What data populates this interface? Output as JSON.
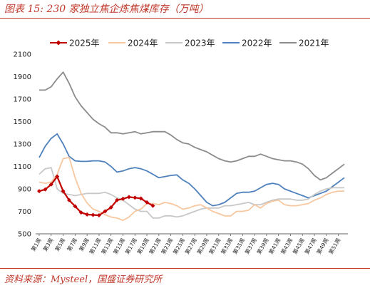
{
  "header": {
    "title": "图表 15:  230 家独立焦企炼焦煤库存（万吨）"
  },
  "footer": {
    "source": "资料来源：Mysteel，国盛证券研究所"
  },
  "chart_data": {
    "type": "line",
    "title": "",
    "xlabel": "",
    "ylabel": "",
    "ylim": [
      500,
      2100
    ],
    "yticks": [
      500,
      700,
      900,
      1100,
      1300,
      1500,
      1700,
      1900,
      2100
    ],
    "xticks": [
      "第1周",
      "第3周",
      "第5周",
      "第7周",
      "第9周",
      "第11周",
      "第13周",
      "第15周",
      "第17周",
      "第19周",
      "第21周",
      "第23周",
      "第25周",
      "第27周",
      "第29周",
      "第31周",
      "第33周",
      "第35周",
      "第37周",
      "第39周",
      "第41周",
      "第43周",
      "第45周",
      "第47周",
      "第49周",
      "第51周"
    ],
    "weeks": 52,
    "legend_position": "top",
    "series": [
      {
        "name": "2025年",
        "color": "#c00000",
        "marker": "diamond",
        "values": [
          880,
          895,
          940,
          1010,
          880,
          800,
          745,
          690,
          672,
          668,
          665,
          700,
          735,
          800,
          812,
          828,
          822,
          815,
          780,
          750
        ]
      },
      {
        "name": "2024年",
        "color": "#f7c7a0",
        "marker": "none",
        "values": [
          960,
          950,
          960,
          1030,
          1170,
          1180,
          1000,
          860,
          775,
          720,
          700,
          670,
          650,
          640,
          620,
          650,
          700,
          720,
          770,
          770,
          760,
          780,
          770,
          750,
          720,
          730,
          750,
          760,
          730,
          700,
          680,
          660,
          660,
          700,
          700,
          710,
          760,
          730,
          770,
          790,
          800,
          760,
          750,
          750,
          760,
          770,
          800,
          820,
          850,
          870,
          880,
          880
        ]
      },
      {
        "name": "2023年",
        "color": "#c8c8c8",
        "marker": "none",
        "values": [
          1030,
          1080,
          1090,
          900,
          860,
          850,
          840,
          850,
          860,
          860,
          860,
          870,
          850,
          820,
          800,
          760,
          720,
          700,
          700,
          640,
          640,
          660,
          660,
          650,
          660,
          680,
          700,
          720,
          730,
          730,
          730,
          750,
          750,
          760,
          770,
          780,
          760,
          760,
          780,
          800,
          810,
          810,
          810,
          800,
          800,
          810,
          850,
          880,
          900,
          910,
          910,
          910
        ]
      },
      {
        "name": "2022年",
        "color": "#4f81bd",
        "marker": "none",
        "values": [
          1180,
          1280,
          1350,
          1390,
          1300,
          1190,
          1150,
          1145,
          1145,
          1150,
          1150,
          1140,
          1100,
          1050,
          1060,
          1080,
          1090,
          1080,
          1060,
          1030,
          1000,
          1010,
          1020,
          1025,
          980,
          950,
          900,
          840,
          780,
          750,
          760,
          780,
          820,
          860,
          870,
          870,
          880,
          910,
          940,
          950,
          940,
          900,
          880,
          860,
          840,
          820,
          840,
          860,
          880,
          920,
          960,
          1000
        ]
      },
      {
        "name": "2021年",
        "color": "#8c8c8c",
        "marker": "none",
        "values": [
          1780,
          1780,
          1810,
          1880,
          1940,
          1840,
          1720,
          1640,
          1580,
          1520,
          1480,
          1450,
          1400,
          1400,
          1390,
          1400,
          1410,
          1390,
          1400,
          1410,
          1410,
          1410,
          1380,
          1340,
          1310,
          1300,
          1270,
          1250,
          1230,
          1200,
          1170,
          1150,
          1140,
          1150,
          1170,
          1190,
          1190,
          1210,
          1190,
          1170,
          1160,
          1150,
          1150,
          1140,
          1120,
          1080,
          1020,
          980,
          1000,
          1040,
          1080,
          1120
        ]
      }
    ]
  }
}
